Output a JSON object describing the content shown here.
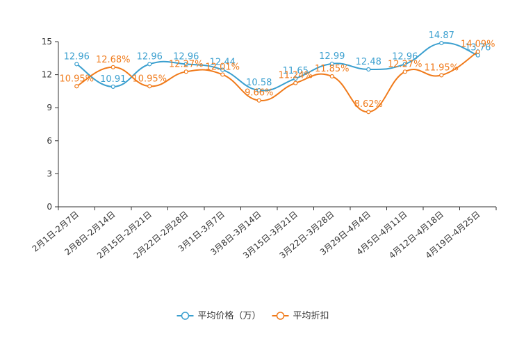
{
  "chart_data": {
    "type": "line",
    "title": "",
    "xlabel": "",
    "ylabel": "",
    "ylim": [
      0,
      15
    ],
    "yticks": [
      "0",
      "3",
      "6",
      "9",
      "12",
      "15"
    ],
    "grid": false,
    "legend_position": "bottom-center",
    "categories": [
      "2月1日-2月7日",
      "2月8日-2月14日",
      "2月15日-2月21日",
      "2月22日-2月28日",
      "3月1日-3月7日",
      "3月8日-3月14日",
      "3月15日-3月21日",
      "3月22日-3月28日",
      "3月29日-4月4日",
      "4月5日-4月11日",
      "4月12日-4月18日",
      "4月19日-4月25日"
    ],
    "series": [
      {
        "name": "平均价格（万）",
        "color": "#3a9fcf",
        "values": [
          12.96,
          10.91,
          12.96,
          12.96,
          12.44,
          10.58,
          11.65,
          12.99,
          12.48,
          12.96,
          14.87,
          13.76
        ],
        "labels": [
          "12.96",
          "10.91",
          "12.96",
          "12.96",
          "12.44",
          "10.58",
          "11.65",
          "12.99",
          "12.48",
          "12.96",
          "14.87",
          "13.76"
        ]
      },
      {
        "name": "平均折扣",
        "color": "#f07a1a",
        "values": [
          10.95,
          12.68,
          10.95,
          12.27,
          12.01,
          9.66,
          11.24,
          11.85,
          8.62,
          12.27,
          11.95,
          14.09
        ],
        "labels": [
          "10.95%",
          "12.68%",
          "10.95%",
          "12.27%",
          "12.01%",
          "9.66%",
          "11.24%",
          "11.85%",
          "8.62%",
          "12.27%",
          "11.95%",
          "14.09%"
        ]
      }
    ]
  }
}
